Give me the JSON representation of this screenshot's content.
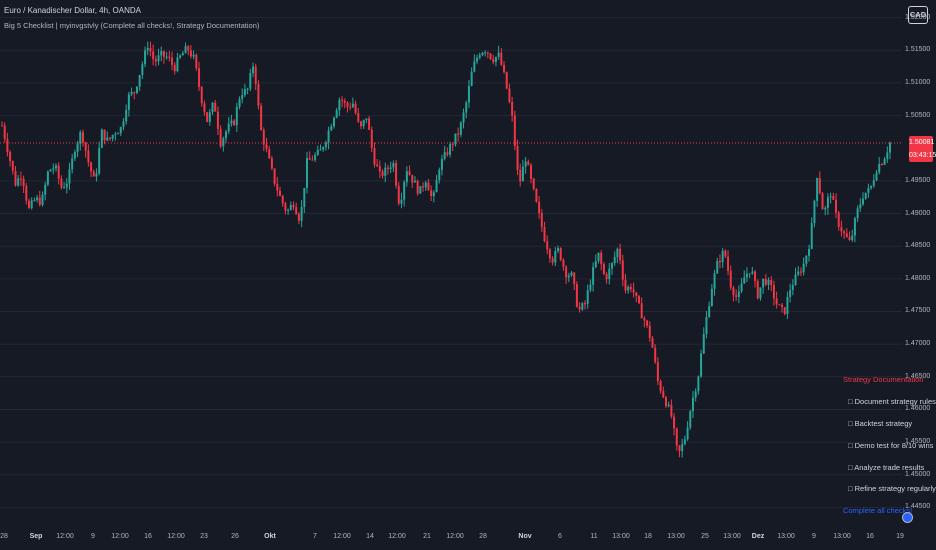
{
  "header": {
    "title": "Euro / Kanadischer Dollar, 4h, OANDA",
    "indicator": "Big 5 Checklist | myinvgstvly (Complete all checks!, Strategy Documentation)",
    "currency_button": "CAD"
  },
  "price_badge": {
    "price": "1.50081",
    "countdown": "03:43:15"
  },
  "checklist": {
    "title": "Strategy Documentation",
    "items": [
      "□ Document strategy rules",
      "□ Backtest strategy",
      "□ Demo test for 8/10 wins",
      "□ Analyze trade results",
      "□ Refine strategy regularly"
    ],
    "footer": "Complete all checks!"
  },
  "colors": {
    "up": "#26a69a",
    "down": "#f23645",
    "background": "#161a25",
    "grid": "#232735",
    "text": "#b2b5be",
    "accent": "#2962ff"
  },
  "chart_data": {
    "type": "candlestick",
    "y_axis": {
      "range": [
        1.442,
        1.5227
      ],
      "ticks": [
        {
          "value": 1.52,
          "label": "1.52000"
        },
        {
          "value": 1.515,
          "label": "1.51500"
        },
        {
          "value": 1.51,
          "label": "1.51000"
        },
        {
          "value": 1.505,
          "label": "1.50500"
        },
        {
          "value": 1.495,
          "label": "1.49500"
        },
        {
          "value": 1.49,
          "label": "1.49000"
        },
        {
          "value": 1.485,
          "label": "1.48500"
        },
        {
          "value": 1.48,
          "label": "1.48000"
        },
        {
          "value": 1.475,
          "label": "1.47500"
        },
        {
          "value": 1.47,
          "label": "1.47000"
        },
        {
          "value": 1.465,
          "label": "1.46500"
        },
        {
          "value": 1.46,
          "label": "1.46000"
        },
        {
          "value": 1.455,
          "label": "1.45500"
        },
        {
          "value": 1.45,
          "label": "1.45000"
        },
        {
          "value": 1.445,
          "label": "1.44500"
        }
      ]
    },
    "x_axis": {
      "ticks": [
        {
          "label": "28",
          "bold": false
        },
        {
          "label": "Sep",
          "bold": true
        },
        {
          "label": "12:00",
          "bold": false
        },
        {
          "label": "9",
          "bold": false
        },
        {
          "label": "12:00",
          "bold": false
        },
        {
          "label": "16",
          "bold": false
        },
        {
          "label": "12:00",
          "bold": false
        },
        {
          "label": "23",
          "bold": false
        },
        {
          "label": "26",
          "bold": false
        },
        {
          "label": "Okt",
          "bold": true
        },
        {
          "label": "7",
          "bold": false
        },
        {
          "label": "12:00",
          "bold": false
        },
        {
          "label": "14",
          "bold": false
        },
        {
          "label": "12:00",
          "bold": false
        },
        {
          "label": "21",
          "bold": false
        },
        {
          "label": "12:00",
          "bold": false
        },
        {
          "label": "28",
          "bold": false
        },
        {
          "label": "Nov",
          "bold": true
        },
        {
          "label": "6",
          "bold": false
        },
        {
          "label": "11",
          "bold": false
        },
        {
          "label": "13:00",
          "bold": false
        },
        {
          "label": "18",
          "bold": false
        },
        {
          "label": "13:00",
          "bold": false
        },
        {
          "label": "25",
          "bold": false
        },
        {
          "label": "13:00",
          "bold": false
        },
        {
          "label": "Dez",
          "bold": true
        },
        {
          "label": "13:00",
          "bold": false
        },
        {
          "label": "9",
          "bold": false
        },
        {
          "label": "13:00",
          "bold": false
        },
        {
          "label": "16",
          "bold": false
        },
        {
          "label": "19",
          "bold": false
        }
      ]
    },
    "current_price": 1.50081,
    "path": [
      1.5035,
      1.4992,
      1.4946,
      1.4962,
      1.4905,
      1.4922,
      1.4918,
      1.4966,
      1.4972,
      1.4939,
      1.4952,
      1.5001,
      1.5026,
      1.498,
      1.4946,
      1.5025,
      1.501,
      1.5025,
      1.5031,
      1.5078,
      1.5087,
      1.5123,
      1.5159,
      1.5132,
      1.5142,
      1.5139,
      1.5123,
      1.5142,
      1.5153,
      1.5136,
      1.508,
      1.5041,
      1.5071,
      1.5009,
      1.503,
      1.504,
      1.5086,
      1.5087,
      1.5133,
      1.503,
      1.4992,
      1.4953,
      1.4924,
      1.4902,
      1.4917,
      1.4889,
      1.4978,
      1.4986,
      1.4994,
      1.5018,
      1.5049,
      1.5078,
      1.5063,
      1.5069,
      1.5027,
      1.5049,
      1.4988,
      1.4958,
      1.4966,
      1.498,
      1.4912,
      1.497,
      1.4951,
      1.4932,
      1.4954,
      1.4917,
      1.4973,
      1.4991,
      1.5009,
      1.5026,
      1.5066,
      1.5122,
      1.5147,
      1.5152,
      1.5137,
      1.5142,
      1.5101,
      1.5045,
      1.4942,
      1.4986,
      1.4942,
      1.4898,
      1.4858,
      1.4829,
      1.4845,
      1.481,
      1.4804,
      1.475,
      1.4762,
      1.4806,
      1.4837,
      1.48,
      1.482,
      1.4849,
      1.4783,
      1.4789,
      1.4759,
      1.4735,
      1.4705,
      1.4641,
      1.4617,
      1.459,
      1.4528,
      1.4554,
      1.4607,
      1.4648,
      1.4721,
      1.4783,
      1.4825,
      1.4843,
      1.479,
      1.4768,
      1.4802,
      1.4817,
      1.4775,
      1.4801,
      1.4787,
      1.4759,
      1.4747,
      1.4788,
      1.4805,
      1.4823,
      1.4861,
      1.496,
      1.4898,
      1.4934,
      1.489,
      1.4869,
      1.4854,
      1.4901,
      1.493,
      1.4936,
      1.4971,
      1.4983,
      1.5008
    ]
  }
}
